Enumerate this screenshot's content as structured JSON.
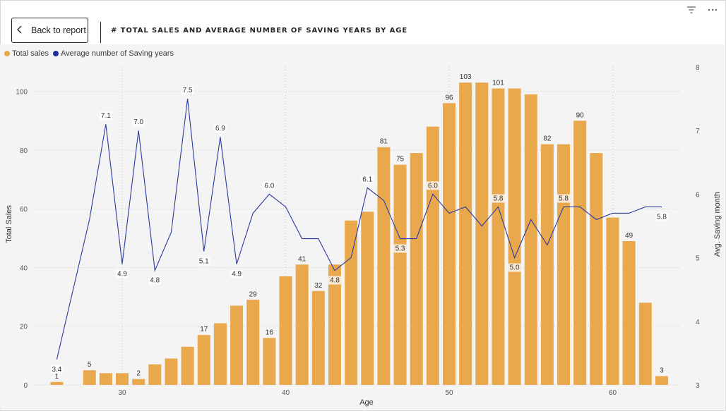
{
  "header": {
    "back_label": "Back to report",
    "title": "# TOTAL SALES AND AVERAGE NUMBER OF SAVING YEARS BY AGE"
  },
  "icons": [
    "filter-icon",
    "more-options-icon"
  ],
  "colors": {
    "bar": "#E9A84C",
    "line": "#2B3A9E",
    "background": "#F3F4F3"
  },
  "chart_data": {
    "type": "bar",
    "legend": [
      {
        "name": "Total sales",
        "color": "#E9A84C"
      },
      {
        "name": "Average number of Saving years",
        "color": "#1F2FA0"
      }
    ],
    "legend_position": "top-left",
    "xlabel": "Age",
    "ylabel": "Total Sales",
    "y2label": "Avg. Saving month",
    "xlim": [
      25.5,
      63.8
    ],
    "ylim": [
      0,
      110
    ],
    "y2lim": [
      3,
      8
    ],
    "x_ticks": [
      30,
      40,
      50,
      60
    ],
    "y_ticks": [
      0,
      20,
      40,
      60,
      80,
      100
    ],
    "y2_ticks": [
      3,
      4,
      5,
      6,
      7,
      8
    ],
    "grid": true,
    "bars": {
      "name": "Total sales",
      "x": [
        26,
        28,
        29,
        30,
        31,
        32,
        33,
        34,
        35,
        36,
        37,
        38,
        39,
        40,
        41,
        42,
        43,
        44,
        45,
        46,
        47,
        48,
        49,
        50,
        51,
        52,
        53,
        54,
        55,
        56,
        57,
        58,
        59,
        60,
        61,
        62,
        63
      ],
      "values": [
        1,
        5,
        4,
        4,
        2,
        7,
        9,
        13,
        17,
        21,
        27,
        29,
        16,
        37,
        41,
        32,
        41,
        56,
        59,
        81,
        75,
        79,
        88,
        96,
        103,
        103,
        101,
        101,
        99,
        82,
        82,
        90,
        79,
        57,
        49,
        28,
        3
      ],
      "labeled": [
        26,
        28,
        31,
        35,
        38,
        39,
        41,
        42,
        46,
        47,
        50,
        51,
        53,
        56,
        58,
        61,
        63
      ],
      "labels": [
        "1",
        "5",
        "2",
        "17",
        "29",
        "16",
        "41",
        "32",
        "81",
        "75",
        "96",
        "103",
        "101",
        "82",
        "90",
        "49",
        "3"
      ]
    },
    "line": {
      "name": "Average number of Saving years",
      "x": [
        26,
        28,
        29,
        30,
        31,
        32,
        33,
        34,
        35,
        36,
        37,
        38,
        39,
        40,
        41,
        42,
        43,
        44,
        45,
        46,
        47,
        48,
        49,
        50,
        51,
        52,
        53,
        54,
        55,
        56,
        57,
        58,
        59,
        60,
        61,
        62,
        63
      ],
      "values": [
        3.4,
        5.6,
        7.1,
        4.9,
        7.0,
        4.8,
        5.4,
        7.5,
        5.1,
        6.9,
        4.9,
        5.7,
        6.0,
        5.8,
        5.3,
        5.3,
        4.8,
        5.0,
        6.1,
        5.9,
        5.3,
        5.3,
        6.0,
        5.7,
        5.8,
        5.5,
        5.8,
        5.0,
        5.6,
        5.2,
        5.8,
        5.8,
        5.6,
        5.7,
        5.7,
        5.8,
        5.8
      ],
      "labeled": [
        26,
        29,
        30,
        31,
        32,
        34,
        35,
        36,
        37,
        39,
        43,
        45,
        47,
        49,
        53,
        54,
        57,
        63
      ],
      "labels": [
        "3.4",
        "7.1",
        "4.9",
        "7.0",
        "4.8",
        "7.5",
        "5.1",
        "6.9",
        "4.9",
        "6.0",
        "4.8",
        "6.1",
        "5.3",
        "6.0",
        "5.8",
        "5.0",
        "5.8",
        "5.8"
      ]
    }
  }
}
